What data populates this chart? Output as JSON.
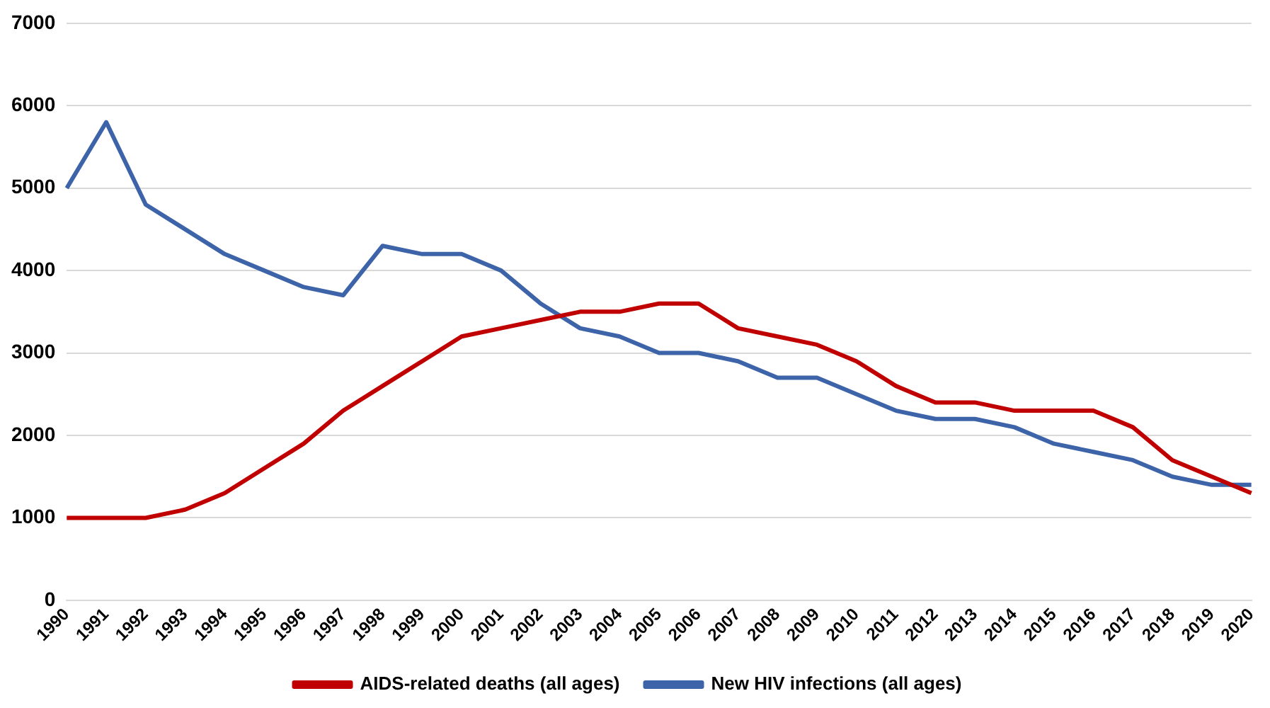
{
  "chart_data": {
    "type": "line",
    "categories": [
      "1990",
      "1991",
      "1992",
      "1993",
      "1994",
      "1995",
      "1996",
      "1997",
      "1998",
      "1999",
      "2000",
      "2001",
      "2002",
      "2003",
      "2004",
      "2005",
      "2006",
      "2007",
      "2008",
      "2009",
      "2010",
      "2011",
      "2012",
      "2013",
      "2014",
      "2015",
      "2016",
      "2017",
      "2018",
      "2019",
      "2020"
    ],
    "series": [
      {
        "name": "AIDS-related deaths (all ages)",
        "color": "#c00000",
        "values": [
          1000,
          1000,
          1000,
          1100,
          1300,
          1600,
          1900,
          2300,
          2600,
          2900,
          3200,
          3300,
          3400,
          3500,
          3500,
          3600,
          3600,
          3300,
          3200,
          3100,
          2900,
          2600,
          2400,
          2400,
          2300,
          2300,
          2300,
          2100,
          1700,
          1500,
          1300
        ]
      },
      {
        "name": "New HIV infections (all ages)",
        "color": "#3d64a8",
        "values": [
          5000,
          5800,
          4800,
          4500,
          4200,
          4000,
          3800,
          3700,
          4300,
          4200,
          4200,
          4000,
          3600,
          3300,
          3200,
          3000,
          3000,
          2900,
          2700,
          2700,
          2500,
          2300,
          2200,
          2200,
          2100,
          1900,
          1800,
          1700,
          1500,
          1400,
          1400
        ]
      }
    ],
    "ylim": [
      0,
      7000
    ],
    "yticks": [
      0,
      1000,
      2000,
      3000,
      4000,
      5000,
      6000,
      7000
    ],
    "grid": "y",
    "legend": "bottom",
    "marker": "none",
    "line_style": "solid"
  }
}
